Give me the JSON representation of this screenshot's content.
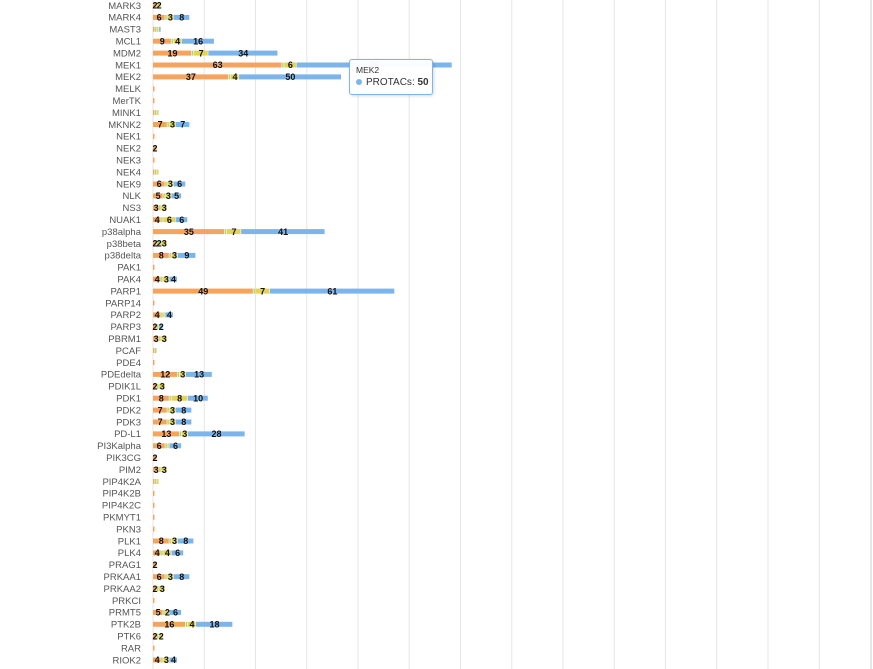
{
  "colors": {
    "s1": "#f7a35c",
    "s2": "#a9d86e",
    "s3": "#e4d354",
    "s4": "#7cb5ec",
    "grid": "#e6e6e6"
  },
  "tooltip": {
    "category": "MEK2",
    "series_name": "PROTACs",
    "separator": ": ",
    "value": "50"
  },
  "chart_data": {
    "type": "bar",
    "orientation": "horizontal",
    "stacked": true,
    "xlim": [
      0,
      140
    ],
    "grid": true,
    "categories": [
      "MARK3",
      "MARK4",
      "MAST3",
      "MCL1",
      "MDM2",
      "MEK1",
      "MEK2",
      "MELK",
      "MerTK",
      "MINK1",
      "MKNK2",
      "NEK1",
      "NEK2",
      "NEK3",
      "NEK4",
      "NEK9",
      "NLK",
      "NS3",
      "NUAK1",
      "p38alpha",
      "p38beta",
      "p38delta",
      "PAK1",
      "PAK4",
      "PARP1",
      "PARP14",
      "PARP2",
      "PARP3",
      "PBRM1",
      "PCAF",
      "PDE4",
      "PDEdelta",
      "PDIK1L",
      "PDK1",
      "PDK2",
      "PDK3",
      "PD-L1",
      "PI3Kalpha",
      "PIK3CG",
      "PIM2",
      "PIP4K2A",
      "PIP4K2B",
      "PIP4K2C",
      "PKMYT1",
      "PKN3",
      "PLK1",
      "PLK4",
      "PRAG1",
      "PRKAA1",
      "PRKAA2",
      "PRKCI",
      "PRMT5",
      "PTK2B",
      "PTK6",
      "RAR",
      "RIOK2"
    ],
    "series": [
      {
        "values": [
          2,
          6,
          1,
          9,
          19,
          63,
          37,
          1,
          1,
          1,
          7,
          1,
          2,
          1,
          1,
          6,
          5,
          3,
          4,
          35,
          2,
          8,
          1,
          4,
          49,
          1,
          4,
          2,
          3,
          1,
          1,
          12,
          2,
          8,
          7,
          7,
          13,
          6,
          2,
          3,
          1,
          1,
          1,
          1,
          1,
          8,
          4,
          2,
          6,
          2,
          1,
          5,
          16,
          2,
          1,
          4
        ]
      },
      {
        "values": [
          0,
          1,
          1,
          1,
          1,
          1,
          1,
          0,
          0,
          1,
          1,
          0,
          0,
          0,
          1,
          1,
          1,
          1,
          1,
          1,
          2,
          1,
          0,
          1,
          1,
          0,
          1,
          1,
          1,
          1,
          0,
          1,
          1,
          1,
          1,
          1,
          1,
          1,
          0,
          1,
          1,
          0,
          0,
          0,
          0,
          1,
          1,
          0,
          1,
          1,
          0,
          1,
          1,
          1,
          0,
          1
        ]
      },
      {
        "values": [
          2,
          3,
          1,
          4,
          7,
          6,
          4,
          0,
          0,
          1,
          3,
          0,
          0,
          0,
          1,
          3,
          3,
          3,
          6,
          7,
          3,
          3,
          0,
          3,
          7,
          0,
          1,
          0,
          3,
          0,
          0,
          3,
          3,
          8,
          3,
          3,
          3,
          1,
          0,
          3,
          1,
          0,
          0,
          0,
          0,
          3,
          4,
          0,
          3,
          3,
          0,
          2,
          4,
          2,
          0,
          3
        ]
      },
      {
        "values": [
          0,
          8,
          1,
          16,
          34,
          76,
          50,
          0,
          0,
          0,
          7,
          0,
          0,
          0,
          0,
          6,
          5,
          0,
          6,
          41,
          0,
          9,
          0,
          4,
          61,
          0,
          4,
          2,
          0,
          0,
          0,
          13,
          0,
          10,
          8,
          8,
          28,
          6,
          0,
          0,
          0,
          0,
          0,
          0,
          0,
          8,
          6,
          0,
          8,
          0,
          0,
          6,
          18,
          0,
          0,
          4
        ]
      }
    ]
  }
}
